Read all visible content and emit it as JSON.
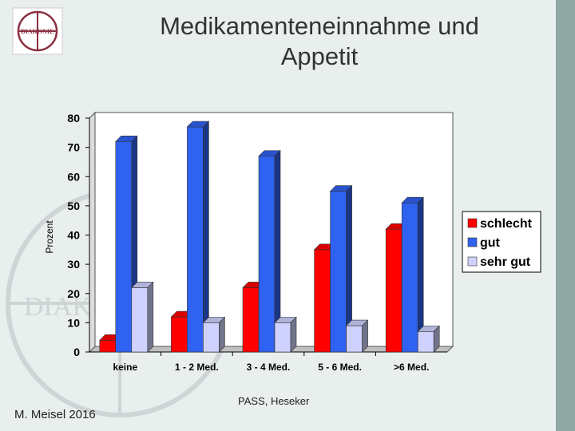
{
  "slide": {
    "title_line1": "Medikamenteneinnahme und",
    "title_line2": "Appetit",
    "author": "M. Meisel 2016",
    "source": "PASS, Heseker",
    "logo_text": "DIAKONIE"
  },
  "chart_data": {
    "type": "bar",
    "title": "Medikamenteneinnahme und Appetit",
    "xlabel": "",
    "ylabel": "Prozent",
    "ylim": [
      0,
      80
    ],
    "yticks": [
      0,
      10,
      20,
      30,
      40,
      50,
      60,
      70,
      80
    ],
    "categories": [
      "keine",
      "1 - 2 Med.",
      "3 - 4 Med.",
      "5 - 6 Med.",
      ">6 Med."
    ],
    "series": [
      {
        "name": "schlecht",
        "color": "#ff0000",
        "values": [
          4,
          12,
          22,
          35,
          42
        ]
      },
      {
        "name": "gut",
        "color": "#2f62f0",
        "values": [
          72,
          77,
          67,
          55,
          51
        ]
      },
      {
        "name": "sehr gut",
        "color": "#cfd2ff",
        "values": [
          22,
          10,
          10,
          9,
          7
        ]
      }
    ],
    "legend_position": "right",
    "grid": false
  },
  "colors": {
    "background": "#e8efed",
    "accent_strip": "#8fa8a3"
  }
}
